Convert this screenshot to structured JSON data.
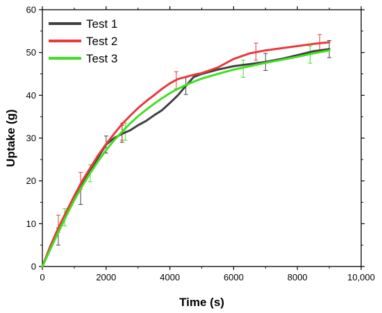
{
  "chart_data": {
    "type": "line",
    "xlabel": "Time (s)",
    "ylabel": "Uptake (g)",
    "xlim": [
      0,
      10000
    ],
    "ylim": [
      0,
      60
    ],
    "xticks": [
      0,
      2000,
      4000,
      6000,
      8000,
      10000
    ],
    "xtick_labels": [
      "0",
      "2000",
      "4000",
      "6000",
      "8000",
      "10,000"
    ],
    "yticks": [
      0,
      10,
      20,
      30,
      40,
      50,
      60
    ],
    "ytick_labels": [
      "0",
      "10",
      "20",
      "30",
      "40",
      "50",
      "60"
    ],
    "grid": false,
    "legend_position": "top-left",
    "series": [
      {
        "name": "Test 1",
        "color": "#404040",
        "x": [
          0,
          250,
          500,
          750,
          1000,
          1250,
          1500,
          1750,
          2000,
          2250,
          2500,
          2750,
          3000,
          3250,
          3500,
          3750,
          4000,
          4250,
          4500,
          4750,
          5000,
          5500,
          6000,
          6500,
          7000,
          7500,
          8000,
          8500,
          9000
        ],
        "y": [
          0,
          4.5,
          8.5,
          12.5,
          16,
          19.5,
          22.5,
          25.5,
          28.5,
          30,
          31,
          31.8,
          33,
          34,
          35.3,
          36.5,
          38.2,
          40,
          42.2,
          44.3,
          45,
          46,
          46.8,
          47.3,
          47.8,
          48.5,
          49.4,
          50.3,
          50.8
        ],
        "error_x": [
          500,
          1200,
          2000,
          2500,
          4500,
          7000,
          9000
        ],
        "error_y": [
          7,
          16.5,
          28.5,
          31,
          42.2,
          47.8,
          50.8
        ],
        "error_size": [
          2,
          2,
          2,
          2,
          2,
          2,
          2
        ]
      },
      {
        "name": "Test 2",
        "color": "#e8393c",
        "x": [
          0,
          250,
          500,
          750,
          1000,
          1250,
          1500,
          1750,
          2000,
          2250,
          2500,
          2750,
          3000,
          3250,
          3500,
          3750,
          4000,
          4250,
          4500,
          4750,
          5000,
          5500,
          6000,
          6500,
          7000,
          7500,
          8000,
          8500,
          9000
        ],
        "y": [
          0,
          4.8,
          9,
          12.8,
          16.5,
          20,
          23,
          26,
          28.6,
          31,
          33.3,
          35.2,
          37,
          38.6,
          40,
          41.5,
          42.8,
          43.8,
          44.3,
          44.8,
          45.2,
          46.5,
          48.5,
          49.8,
          50.5,
          51,
          51.5,
          52,
          52.4
        ],
        "error_x": [
          500,
          1200,
          2500,
          4200,
          6700,
          8700
        ],
        "error_y": [
          10,
          20,
          31.5,
          43.5,
          50.2,
          52.2
        ],
        "error_size": [
          2,
          2,
          2,
          2,
          2,
          2
        ]
      },
      {
        "name": "Test 3",
        "color": "#3fe01f",
        "x": [
          0,
          250,
          500,
          750,
          1000,
          1250,
          1500,
          1750,
          2000,
          2250,
          2500,
          2750,
          3000,
          3250,
          3500,
          3750,
          4000,
          4250,
          4500,
          4750,
          5000,
          5500,
          6000,
          6500,
          7000,
          7500,
          8000,
          8500,
          9000
        ],
        "y": [
          0,
          4,
          8,
          11.8,
          15.5,
          18.8,
          21.8,
          24.6,
          27.2,
          29.5,
          31.5,
          33.4,
          35.1,
          36.6,
          38,
          39.3,
          40.5,
          41.5,
          42.4,
          43.2,
          43.9,
          45,
          46,
          46.8,
          47.6,
          48.3,
          49,
          49.8,
          50.5
        ],
        "error_x": [
          700,
          1500,
          2600,
          6300,
          8400
        ],
        "error_y": [
          11.5,
          21.8,
          31.5,
          46.2,
          49.5
        ],
        "error_size": [
          2,
          2,
          2,
          2,
          2
        ]
      }
    ]
  }
}
